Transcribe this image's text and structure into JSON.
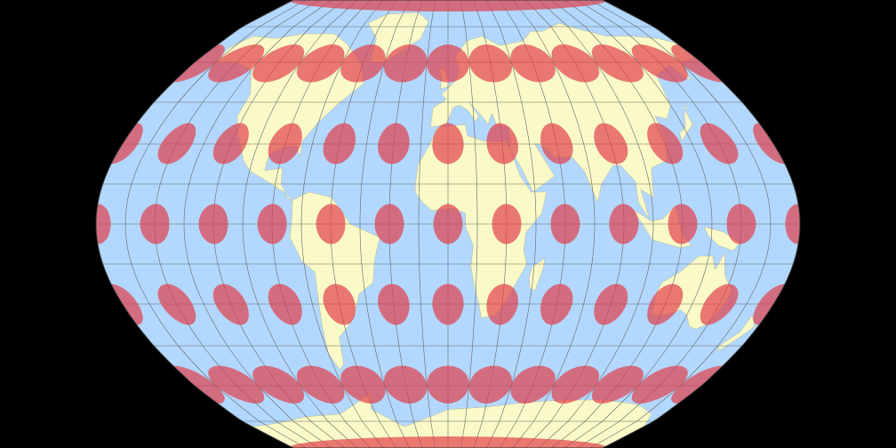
{
  "map": {
    "colors": {
      "background": "#000000",
      "ocean": "#b3d8ff",
      "land": "#fafac8",
      "graticule": "#666666",
      "indicatrix": "#e0404a",
      "outline": "#333333"
    },
    "graticule_step_deg": 15,
    "indicatrix_rows": [
      {
        "lat": 0,
        "lon_step": 30
      },
      {
        "lat": 30,
        "lon_step": 30
      },
      {
        "lat": -30,
        "lon_step": 30
      },
      {
        "lat": 60,
        "lon_step": 30
      },
      {
        "lat": -60,
        "lon_step": 30
      },
      {
        "lat": 90,
        "lon_step": 30
      },
      {
        "lat": -90,
        "lon_step": 30
      }
    ]
  }
}
